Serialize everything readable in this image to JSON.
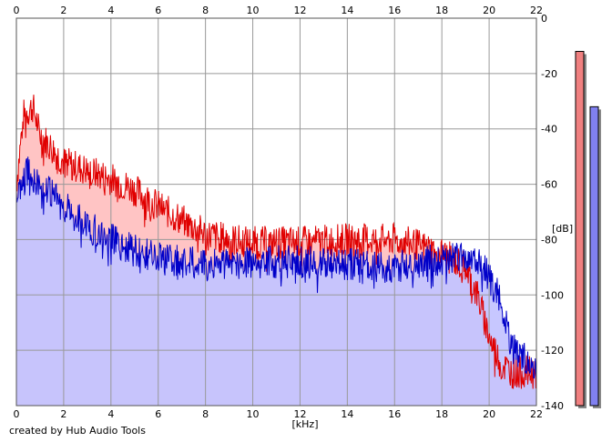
{
  "chart_data": {
    "type": "area",
    "xlabel": "[kHz]",
    "ylabel": "[dB]",
    "xlim": [
      0,
      22
    ],
    "ylim": [
      -140,
      0
    ],
    "x_ticks": [
      "0",
      "2",
      "4",
      "6",
      "8",
      "10",
      "12",
      "14",
      "16",
      "18",
      "20",
      "22"
    ],
    "y_ticks": [
      "0",
      "-20",
      "-40",
      "-60",
      "-80",
      "-100",
      "-120",
      "-140"
    ],
    "grid": true,
    "legend": "none",
    "series": [
      {
        "color": "#e00000",
        "fill": "#ffc4c4",
        "points": [
          [
            0,
            -60
          ],
          [
            0.3,
            -35
          ],
          [
            0.7,
            -32
          ],
          [
            1,
            -42
          ],
          [
            1.5,
            -47
          ],
          [
            2,
            -52
          ],
          [
            3,
            -55
          ],
          [
            4,
            -58
          ],
          [
            5,
            -62
          ],
          [
            6,
            -68
          ],
          [
            7,
            -73
          ],
          [
            8,
            -78
          ],
          [
            9,
            -80
          ],
          [
            10,
            -81
          ],
          [
            12,
            -81
          ],
          [
            14,
            -80
          ],
          [
            16,
            -80
          ],
          [
            17,
            -82
          ],
          [
            18,
            -85
          ],
          [
            19,
            -90
          ],
          [
            19.5,
            -100
          ],
          [
            20,
            -115
          ],
          [
            20.5,
            -125
          ],
          [
            21,
            -128
          ],
          [
            22,
            -128
          ]
        ]
      },
      {
        "color": "#0000c8",
        "fill": "#c4c4ff",
        "points": [
          [
            0,
            -65
          ],
          [
            0.5,
            -55
          ],
          [
            1,
            -60
          ],
          [
            2,
            -68
          ],
          [
            3,
            -75
          ],
          [
            4,
            -80
          ],
          [
            5,
            -84
          ],
          [
            6,
            -87
          ],
          [
            7,
            -88
          ],
          [
            8,
            -89
          ],
          [
            10,
            -88
          ],
          [
            12,
            -88
          ],
          [
            14,
            -89
          ],
          [
            16,
            -90
          ],
          [
            17,
            -88
          ],
          [
            18,
            -87
          ],
          [
            19,
            -86
          ],
          [
            19.5,
            -88
          ],
          [
            20,
            -93
          ],
          [
            20.5,
            -103
          ],
          [
            21,
            -120
          ],
          [
            22,
            -125
          ]
        ]
      }
    ],
    "level_meters": [
      {
        "color": "#f08080",
        "level_db": -12
      },
      {
        "color": "#8080f0",
        "level_db": -32
      }
    ]
  },
  "footer": {
    "credit": "created by Hub Audio Tools"
  }
}
